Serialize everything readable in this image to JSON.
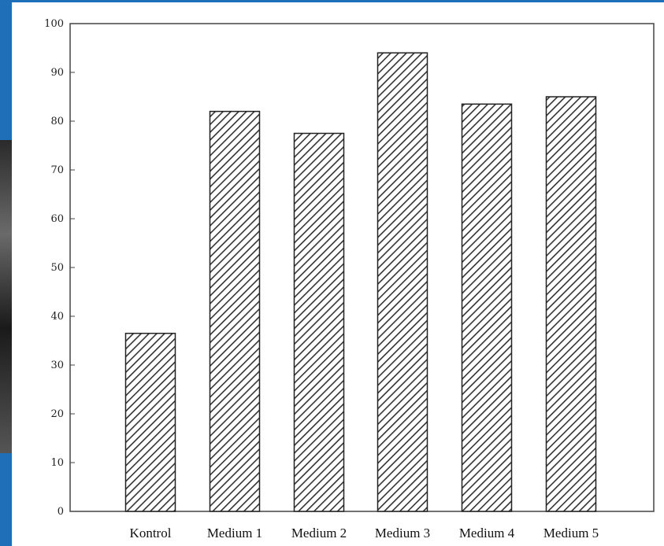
{
  "chart_data": {
    "type": "bar",
    "title": "",
    "xlabel": "",
    "ylabel": "",
    "categories": [
      "Kontrol",
      "Medium 1",
      "Medium 2",
      "Medium 3",
      "Medium 4",
      "Medium 5"
    ],
    "values": [
      36.5,
      82,
      77.5,
      94,
      83.5,
      85
    ],
    "ylim": [
      0,
      100
    ],
    "yticks": [
      0,
      10,
      20,
      30,
      40,
      50,
      60,
      70,
      80,
      90,
      100
    ],
    "grid": false,
    "legend": "none",
    "bar_pattern": "diagonal-hatch",
    "bar_color": "#333333"
  }
}
